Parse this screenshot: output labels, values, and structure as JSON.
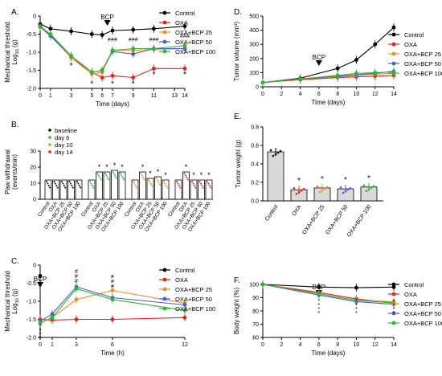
{
  "colors": {
    "control": "#000000",
    "oxa": "#e8211c",
    "bcp25": "#f08c2a",
    "bcp50": "#4a5ad8",
    "bcp100": "#2fb52f",
    "baseline": "#000000",
    "day6": "#2fb52f",
    "day10": "#f08c2a",
    "day14": "#e8211c"
  },
  "chart_data": [
    {
      "panel": "A.",
      "type": "line",
      "xlabel": "Time (days)",
      "ylabel": "Mechanical threshold",
      "ylabel2": "Log10 (g)",
      "xlim": [
        0,
        14
      ],
      "ylim": [
        -2.0,
        0.0
      ],
      "x_ticks": [
        0,
        1,
        3,
        5,
        6,
        7,
        9,
        11,
        13,
        14
      ],
      "y_ticks": [
        "0",
        "-0.5",
        "-1.0",
        "-1.5",
        "-2.0"
      ],
      "y_tick_values": [
        0,
        -0.5,
        -1.0,
        -1.5,
        -2.0
      ],
      "x": [
        0,
        1,
        3,
        5,
        6,
        7,
        9,
        11,
        14
      ],
      "annotation": "BCP",
      "annotation_x": 6.5,
      "legend_position": "top-right",
      "series": [
        {
          "name": "Control",
          "key": "control",
          "values": [
            -0.22,
            -0.35,
            -0.42,
            -0.5,
            -0.52,
            -0.4,
            -0.38,
            -0.35,
            -0.28
          ]
        },
        {
          "name": "OXA",
          "key": "oxa",
          "values": [
            -0.28,
            -0.52,
            -1.15,
            -1.55,
            -1.7,
            -1.65,
            -1.7,
            -1.45,
            -1.45
          ]
        },
        {
          "name": "OXA+BCP 25",
          "key": "bcp25",
          "values": [
            -0.3,
            -0.55,
            -1.15,
            -1.6,
            -1.55,
            -0.95,
            -0.95,
            -0.92,
            -0.9
          ]
        },
        {
          "name": "OXA+BCP 50",
          "key": "bcp50",
          "values": [
            -0.3,
            -0.55,
            -1.1,
            -1.55,
            -1.5,
            -0.98,
            -1.05,
            -0.9,
            -0.9
          ]
        },
        {
          "name": "OXA+BCP 100",
          "key": "bcp100",
          "values": [
            -0.3,
            -0.5,
            -1.1,
            -1.55,
            -1.5,
            -0.95,
            -0.9,
            -0.9,
            -0.82
          ]
        }
      ]
    },
    {
      "panel": "B.",
      "type": "bar",
      "ylabel": "Paw withdrawal",
      "ylabel2": "(events/min)",
      "ylim": [
        0,
        30
      ],
      "y_ticks": [
        "0",
        "10",
        "20",
        "30"
      ],
      "y_tick_values": [
        0,
        10,
        20,
        30
      ],
      "groups": [
        "Control",
        "OXA",
        "OXA+BCP 25",
        "OXA+BCP 50",
        "OXA+BCP 100"
      ],
      "legend": [
        "baseline",
        "day 6",
        "day 10",
        "day 14"
      ],
      "legend_keys": [
        "baseline",
        "day6",
        "day10",
        "day14"
      ],
      "legend_position": "top-left",
      "blocks": [
        {
          "label": "baseline",
          "values": [
            12,
            12,
            12,
            12,
            12
          ]
        },
        {
          "label": "day 6",
          "values": [
            12,
            17,
            17,
            18,
            17
          ]
        },
        {
          "label": "day 10",
          "values": [
            12,
            17,
            13,
            14,
            12
          ]
        },
        {
          "label": "day 14",
          "values": [
            12,
            17,
            12,
            12,
            12
          ]
        }
      ],
      "star": "*",
      "hash": "#"
    },
    {
      "panel": "C.",
      "type": "line",
      "xlabel": "Time (h)",
      "ylabel": "Mechanical threshold",
      "ylabel2": "Log10 (g)",
      "xlim": [
        0,
        12
      ],
      "ylim": [
        -2.0,
        0.0
      ],
      "x_ticks": [
        0,
        1,
        3,
        6,
        12
      ],
      "y_ticks": [
        "0",
        "-0.5",
        "-1.0",
        "-1.5",
        "-2.0"
      ],
      "y_tick_values": [
        0,
        -0.5,
        -1.0,
        -1.5,
        -2.0
      ],
      "annotation": "BCP",
      "annotation_x": 0,
      "legend_position": "right",
      "series": [
        {
          "name": "Control",
          "key": "control",
          "x": [
            0
          ],
          "values": [
            -0.3
          ]
        },
        {
          "name": "OXA",
          "key": "oxa",
          "x": [
            0,
            1,
            3,
            6,
            12
          ],
          "values": [
            -1.5,
            -1.52,
            -1.5,
            -1.5,
            -1.45
          ]
        },
        {
          "name": "OXA+BCP 25",
          "key": "bcp25",
          "x": [
            0,
            1,
            3,
            6,
            12
          ],
          "values": [
            -1.6,
            -1.45,
            -0.95,
            -0.7,
            -1.05
          ]
        },
        {
          "name": "OXA+BCP 50",
          "key": "bcp50",
          "x": [
            0,
            1,
            3,
            6,
            12
          ],
          "values": [
            -1.55,
            -1.35,
            -0.6,
            -0.9,
            -1.1
          ]
        },
        {
          "name": "OXA+BCP 100",
          "key": "bcp100",
          "x": [
            0,
            1,
            3,
            6,
            12
          ],
          "values": [
            -1.6,
            -1.45,
            -0.65,
            -0.95,
            -1.25
          ]
        }
      ]
    },
    {
      "panel": "D.",
      "type": "line",
      "xlabel": "Time (days)",
      "ylabel": "Tumor volume (mm³)",
      "xlim": [
        0,
        14
      ],
      "ylim": [
        0,
        500
      ],
      "x_ticks": [
        0,
        2,
        4,
        6,
        8,
        10,
        12,
        14
      ],
      "y_ticks": [
        "0",
        "100",
        "200",
        "300",
        "400",
        "500"
      ],
      "y_tick_values": [
        0,
        100,
        200,
        300,
        400,
        500
      ],
      "x": [
        0,
        4,
        8,
        10,
        12,
        14
      ],
      "annotation": "BCP",
      "annotation_x": 6,
      "legend_position": "top-right",
      "series": [
        {
          "name": "Control",
          "key": "control",
          "values": [
            30,
            60,
            130,
            190,
            300,
            420
          ]
        },
        {
          "name": "OXA",
          "key": "oxa",
          "values": [
            30,
            50,
            65,
            70,
            75,
            80
          ]
        },
        {
          "name": "OXA+BCP 25",
          "key": "bcp25",
          "values": [
            30,
            55,
            70,
            80,
            90,
            95
          ]
        },
        {
          "name": "OXA+BCP 50",
          "key": "bcp50",
          "values": [
            30,
            55,
            75,
            85,
            95,
            110
          ]
        },
        {
          "name": "OXA+BCP 100",
          "key": "bcp100",
          "values": [
            30,
            55,
            80,
            95,
            100,
            105
          ]
        }
      ]
    },
    {
      "panel": "E.",
      "type": "bar",
      "ylabel": "Tumor weight (g)",
      "ylim": [
        0,
        0.8
      ],
      "y_ticks": [
        "0.0",
        "0.2",
        "0.4",
        "0.6",
        "0.8"
      ],
      "y_tick_values": [
        0,
        0.2,
        0.4,
        0.6,
        0.8
      ],
      "categories": [
        "Control",
        "OXA",
        "OXA+BCP 25",
        "OXA+BCP 50",
        "OXA+BCP 100"
      ],
      "keys": [
        "control",
        "oxa",
        "bcp25",
        "bcp50",
        "bcp100"
      ],
      "values": [
        0.53,
        0.12,
        0.14,
        0.13,
        0.15
      ],
      "star": "*"
    },
    {
      "panel": "F.",
      "type": "line",
      "xlabel": "Time (days)",
      "ylabel": "Body weight (%)",
      "xlim": [
        0,
        14
      ],
      "ylim": [
        60,
        100
      ],
      "x_ticks": [
        0,
        2,
        4,
        6,
        8,
        10,
        12,
        14
      ],
      "y_ticks": [
        "60",
        "70",
        "80",
        "90",
        "100"
      ],
      "y_tick_values": [
        60,
        70,
        80,
        90,
        100
      ],
      "x": [
        0,
        6,
        10,
        14
      ],
      "annotation": "BCP",
      "annotation_x": 6,
      "legend_position": "right",
      "series": [
        {
          "name": "Control",
          "key": "control",
          "values": [
            100,
            98,
            97.5,
            98
          ]
        },
        {
          "name": "OXA",
          "key": "oxa",
          "values": [
            100,
            94,
            89,
            86
          ]
        },
        {
          "name": "OXA+BCP 25",
          "key": "bcp25",
          "values": [
            100,
            93,
            88,
            87
          ]
        },
        {
          "name": "OXA+BCP 50",
          "key": "bcp50",
          "values": [
            100,
            92,
            87,
            85
          ]
        },
        {
          "name": "OXA+BCP 100",
          "key": "bcp100",
          "values": [
            100,
            93,
            88,
            86
          ]
        }
      ]
    }
  ]
}
